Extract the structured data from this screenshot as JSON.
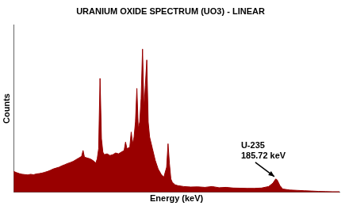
{
  "chart_data": {
    "type": "area",
    "title": "URANIUM OXIDE SPECTRUM (UO3) - LINEAR",
    "x_label": "Energy (keV)",
    "y_label": "Counts",
    "color": "#990000",
    "grid": false,
    "tick_labels": false,
    "xlim": [
      0,
      230
    ],
    "ylim": [
      0,
      1000
    ],
    "x": [
      0,
      2,
      4,
      6,
      8,
      10,
      12,
      14,
      16,
      18,
      20,
      22,
      24,
      26,
      28,
      30,
      32,
      34,
      36,
      38,
      40,
      42,
      44,
      46,
      48,
      49,
      50,
      52,
      54,
      56,
      58,
      59,
      60,
      61,
      62,
      63,
      64,
      66,
      68,
      70,
      72,
      74,
      76,
      78,
      79,
      80,
      82,
      83,
      84,
      85,
      86,
      87,
      88,
      89,
      90,
      91,
      92,
      93,
      94,
      95,
      96,
      98,
      100,
      102,
      104,
      106,
      108,
      109,
      110,
      111,
      112,
      114,
      116,
      120,
      125,
      130,
      135,
      140,
      145,
      150,
      155,
      160,
      165,
      170,
      175,
      180,
      183,
      185,
      186,
      188,
      190,
      195,
      200,
      205,
      210,
      215,
      220,
      225,
      230
    ],
    "values": [
      125,
      118,
      112,
      108,
      106,
      104,
      108,
      105,
      110,
      112,
      115,
      120,
      125,
      132,
      140,
      145,
      150,
      158,
      165,
      172,
      178,
      185,
      195,
      205,
      215,
      250,
      210,
      205,
      200,
      190,
      175,
      200,
      260,
      680,
      320,
      240,
      225,
      230,
      220,
      225,
      235,
      230,
      240,
      250,
      300,
      260,
      270,
      360,
      290,
      330,
      420,
      620,
      380,
      420,
      560,
      855,
      500,
      640,
      790,
      420,
      330,
      260,
      190,
      140,
      110,
      90,
      150,
      290,
      170,
      80,
      60,
      45,
      40,
      35,
      32,
      33,
      30,
      35,
      28,
      30,
      26,
      25,
      24,
      24,
      26,
      35,
      55,
      80,
      75,
      40,
      20,
      14,
      12,
      10,
      8,
      6,
      5,
      4,
      4
    ],
    "annotations": [
      {
        "lines": [
          "U-235",
          "185.72 keV"
        ],
        "x": 185.72,
        "y": 80
      }
    ]
  }
}
